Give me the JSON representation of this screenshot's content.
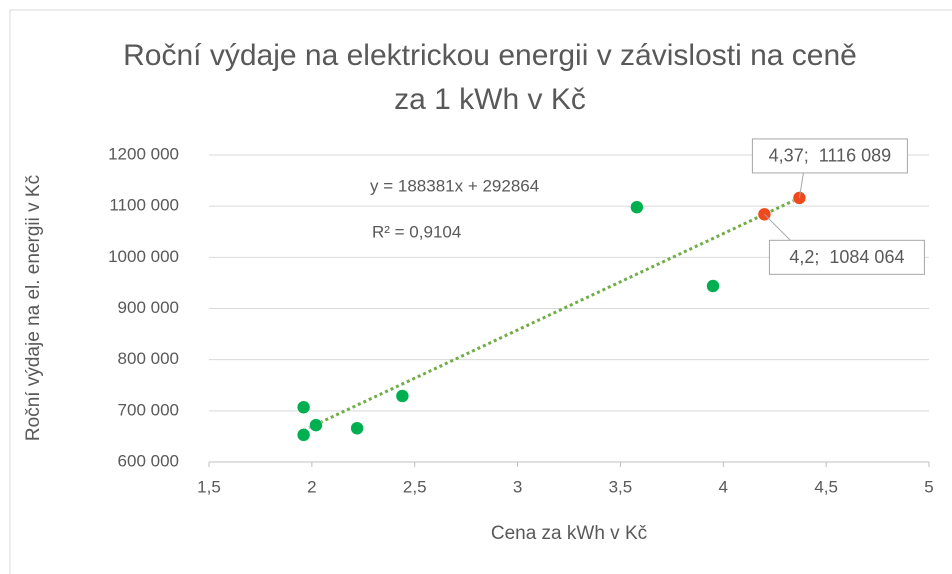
{
  "chart_data": {
    "type": "scatter",
    "title": "Roční výdaje na elektrickou energii v závislosti na ceně za 1 kWh v Kč",
    "x_label": "Cena za kWh v Kč",
    "y_label": "Roční výdaje na el. energii v Kč",
    "series": [
      {
        "color": "#00b050",
        "x": [
          1.96,
          1.96,
          2.02,
          2.22,
          2.44,
          3.58,
          3.95
        ],
        "values": [
          707000,
          653000,
          672000,
          666000,
          729000,
          1098000,
          944000
        ]
      },
      {
        "color": "#f04a1c",
        "x": [
          4.2,
          4.37
        ],
        "values": [
          1084064,
          1116089
        ],
        "value_labels": [
          "4,2;  1084 064",
          "4,37;  1116 089"
        ]
      }
    ],
    "trendline": {
      "color": "#70ad47",
      "slope": 188381,
      "intercept": 292864,
      "equation": "y = 188381x + 292864",
      "r_squared": "R² = 0,9104"
    },
    "xlim": [
      1.5,
      5
    ],
    "xticks": [
      {
        "value": 1.5,
        "label": "1,5"
      },
      2,
      {
        "value": 2.5,
        "label": "2,5"
      },
      3,
      {
        "value": 3.5,
        "label": "3,5"
      },
      4,
      {
        "value": 4.5,
        "label": "4,5"
      },
      5
    ],
    "ylim": [
      600000,
      1200000
    ],
    "yticks": [
      {
        "value": 600000,
        "label": "600 000"
      },
      {
        "value": 700000,
        "label": "700 000"
      },
      {
        "value": 800000,
        "label": "800 000"
      },
      {
        "value": 900000,
        "label": "900 000"
      },
      {
        "value": 1000000,
        "label": "1000 000"
      },
      {
        "value": 1100000,
        "label": "1100 000"
      },
      {
        "value": 1200000,
        "label": "1200 000"
      }
    ],
    "grid": true
  }
}
